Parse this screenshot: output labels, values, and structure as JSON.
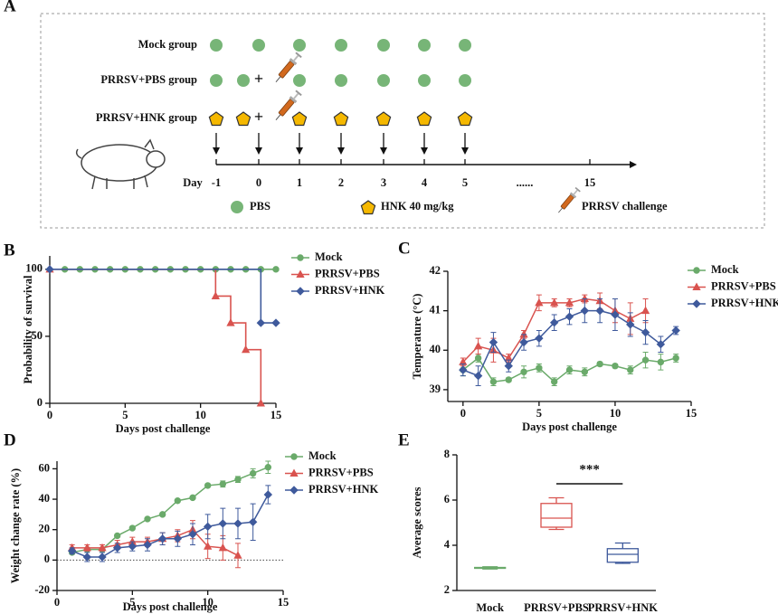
{
  "panel_a": {
    "letter": "A",
    "groups": [
      "Mock group",
      "PRRSV+PBS group",
      "PRRSV+HNK group"
    ],
    "plus": [
      "+",
      "+"
    ],
    "day_label": "Day",
    "days": [
      "-1",
      "0",
      "1",
      "2",
      "3",
      "4",
      "5",
      "......",
      "15"
    ],
    "legend": [
      "PBS",
      "HNK 40 mg/kg",
      "PRRSV challenge"
    ]
  },
  "chart_data": [
    {
      "type": "line",
      "panel": "B",
      "step": true,
      "xlabel": "Days post challenge",
      "ylabel": "Probability of survival",
      "xlim": [
        0,
        15
      ],
      "xticks": [
        0,
        5,
        10,
        15
      ],
      "ylim": [
        0,
        110
      ],
      "yticks": [
        0,
        50,
        100
      ],
      "series": [
        {
          "name": "Mock",
          "color": "#6aaa6a",
          "marker": "circle",
          "x": [
            1,
            2,
            3,
            4,
            5,
            6,
            7,
            8,
            9,
            10,
            11,
            12,
            13,
            14,
            15
          ],
          "values": [
            100,
            100,
            100,
            100,
            100,
            100,
            100,
            100,
            100,
            100,
            100,
            100,
            100,
            100,
            100
          ]
        },
        {
          "name": "PRRSV+PBS",
          "color": "#d9534f",
          "marker": "triangle",
          "x": [
            0,
            11,
            12,
            13,
            14
          ],
          "values": [
            100,
            80,
            60,
            40,
            0
          ]
        },
        {
          "name": "PRRSV+HNK",
          "color": "#3f5a9c",
          "marker": "diamond",
          "x": [
            0,
            14,
            15
          ],
          "values": [
            100,
            60,
            60
          ]
        }
      ]
    },
    {
      "type": "line",
      "panel": "C",
      "xlabel": "Days post challenge",
      "ylabel": "Temperature (°C)",
      "xlim": [
        -1,
        15
      ],
      "xticks": [
        0,
        5,
        10,
        15
      ],
      "ylim": [
        38.7,
        42
      ],
      "yticks": [
        39,
        40,
        41,
        42
      ],
      "x": [
        0,
        1,
        2,
        3,
        4,
        5,
        6,
        7,
        8,
        9,
        10,
        11,
        12,
        13,
        14
      ],
      "series": [
        {
          "name": "Mock",
          "color": "#6aaa6a",
          "marker": "circle",
          "values": [
            39.5,
            39.8,
            39.2,
            39.25,
            39.45,
            39.55,
            39.2,
            39.5,
            39.45,
            39.65,
            39.6,
            39.5,
            39.75,
            39.7,
            39.8
          ],
          "errors": [
            0.15,
            0.1,
            0.1,
            0.05,
            0.15,
            0.1,
            0.1,
            0.1,
            0.1,
            0.05,
            0.05,
            0.1,
            0.2,
            0.2,
            0.1
          ]
        },
        {
          "name": "PRRSV+PBS",
          "color": "#d9534f",
          "marker": "triangle",
          "values": [
            39.7,
            40.1,
            40.0,
            39.8,
            40.4,
            41.2,
            41.2,
            41.2,
            41.3,
            41.25,
            41.0,
            40.8,
            41.0,
            null,
            null
          ],
          "errors": [
            0.1,
            0.2,
            0.3,
            0.1,
            0.1,
            0.2,
            0.1,
            0.1,
            0.1,
            0.2,
            0.3,
            0.4,
            0.3,
            null,
            null
          ]
        },
        {
          "name": "PRRSV+HNK",
          "color": "#3f5a9c",
          "marker": "diamond",
          "values": [
            39.5,
            39.35,
            40.2,
            39.6,
            40.2,
            40.3,
            40.7,
            40.85,
            41.0,
            41.0,
            40.9,
            40.65,
            40.45,
            40.15,
            40.5
          ],
          "errors": [
            0.15,
            0.25,
            0.25,
            0.15,
            0.2,
            0.2,
            0.2,
            0.2,
            0.3,
            0.3,
            0.4,
            0.3,
            0.3,
            0.2,
            0.1
          ]
        }
      ]
    },
    {
      "type": "line",
      "panel": "D",
      "zero_line": true,
      "xlabel": "Days post challenge",
      "ylabel": "Weight change rate (%)",
      "xlim": [
        0,
        15
      ],
      "xticks": [
        0,
        5,
        10,
        15
      ],
      "ylim": [
        -20,
        65
      ],
      "yticks": [
        -20,
        0,
        20,
        40,
        60
      ],
      "x": [
        1,
        2,
        3,
        4,
        5,
        6,
        7,
        8,
        9,
        10,
        11,
        12,
        13,
        14
      ],
      "series": [
        {
          "name": "Mock",
          "color": "#6aaa6a",
          "marker": "circle",
          "values": [
            5,
            7,
            7,
            16,
            21,
            27,
            30,
            39,
            41,
            49,
            50,
            53,
            57,
            61
          ],
          "errors": [
            1,
            1,
            1,
            1,
            1,
            1,
            1,
            1,
            1,
            1,
            2,
            2,
            3,
            4
          ]
        },
        {
          "name": "PRRSV+PBS",
          "color": "#d9534f",
          "marker": "triangle",
          "values": [
            8,
            8,
            8,
            10,
            12,
            12,
            14,
            16,
            20,
            9,
            8,
            3,
            null,
            null
          ],
          "errors": [
            2,
            2,
            2,
            3,
            3,
            3,
            4,
            4,
            6,
            8,
            8,
            8,
            null,
            null
          ]
        },
        {
          "name": "PRRSV+HNK",
          "color": "#3f5a9c",
          "marker": "diamond",
          "values": [
            6,
            2,
            2,
            8,
            9,
            10,
            14,
            14,
            17,
            22,
            24,
            24,
            25,
            43
          ],
          "errors": [
            2,
            3,
            3,
            3,
            3,
            4,
            4,
            5,
            7,
            8,
            10,
            10,
            12,
            6
          ]
        }
      ]
    },
    {
      "type": "box",
      "panel": "E",
      "ylabel": "Average scores",
      "ylim": [
        2,
        8
      ],
      "yticks": [
        2,
        4,
        6,
        8
      ],
      "categories": [
        "Mock",
        "PRRSV+PBS",
        "PRRSV+HNK"
      ],
      "colors": [
        "#6aaa6a",
        "#d9534f",
        "#3f5a9c"
      ],
      "boxes": [
        {
          "min": 2.95,
          "q1": 2.98,
          "median": 3.0,
          "q3": 3.02,
          "max": 3.05
        },
        {
          "min": 4.7,
          "q1": 4.8,
          "median": 5.2,
          "q3": 5.85,
          "max": 6.1
        },
        {
          "min": 3.2,
          "q1": 3.25,
          "median": 3.6,
          "q3": 3.85,
          "max": 4.1
        }
      ],
      "significance": "***"
    }
  ]
}
